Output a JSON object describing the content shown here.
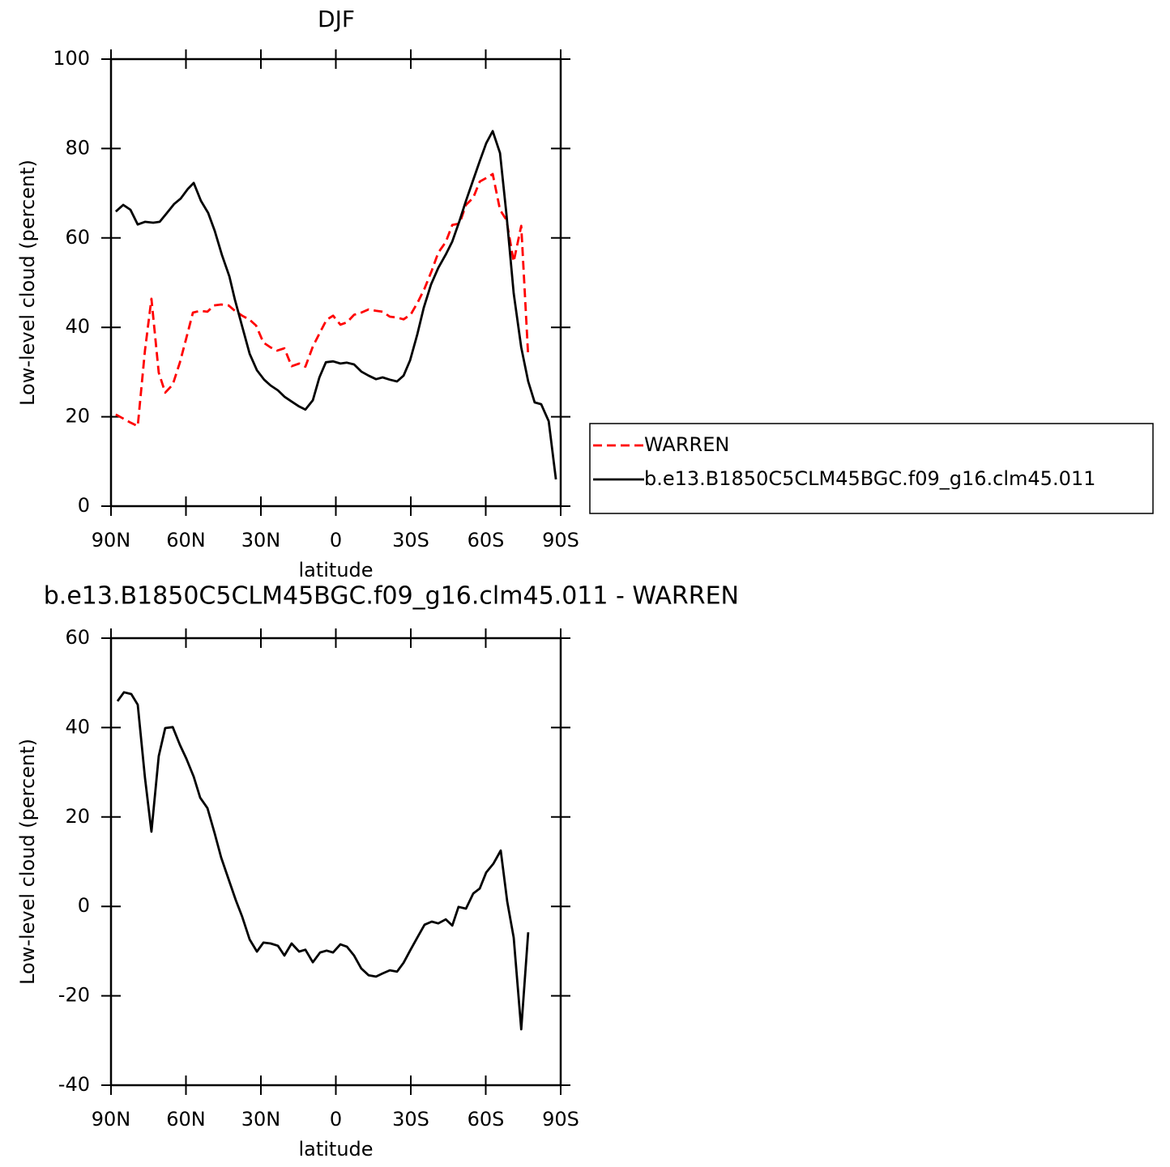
{
  "chart_data": [
    {
      "type": "line",
      "title": "DJF",
      "x_label": "latitude",
      "y_label": "Low-level cloud (percent)",
      "xlim": [
        90,
        -90
      ],
      "xticks": [
        {
          "value": 90,
          "label": "90N"
        },
        {
          "value": 60,
          "label": "60N"
        },
        {
          "value": 30,
          "label": "30N"
        },
        0,
        {
          "value": -30,
          "label": "30S"
        },
        {
          "value": -60,
          "label": "60S"
        },
        {
          "value": -90,
          "label": "90S"
        }
      ],
      "ylim": [
        0,
        100
      ],
      "yticks": [
        0,
        20,
        40,
        60,
        80,
        100
      ],
      "legend": "right",
      "series": [
        {
          "name": "WARREN",
          "color": "#ff0000",
          "dashed": true,
          "x": [
            88.1,
            85.1,
            82.2,
            79.3,
            76.4,
            73.8,
            70.9,
            68.3,
            65.3,
            62.4,
            59.8,
            57.2,
            54.3,
            51.4,
            48.8,
            45.9,
            42.9,
            40.4,
            37.5,
            34.5,
            31.9,
            29.0,
            26.1,
            23.5,
            20.6,
            17.7,
            14.7,
            12.2,
            9.2,
            6.6,
            3.7,
            1.1,
            -1.8,
            -4.4,
            -7.3,
            -10.2,
            -13.1,
            -16.1,
            -18.7,
            -21.6,
            -24.5,
            -27.1,
            -30.0,
            -32.9,
            -35.5,
            -38.4,
            -41.0,
            -44.0,
            -46.6,
            -49.5,
            -52.1,
            -55.0,
            -57.6,
            -60.2,
            -62.8,
            -65.7,
            -68.3,
            -71.2,
            -74.2,
            -77.0
          ],
          "values": [
            20.5,
            19.6,
            18.7,
            17.9,
            34.8,
            46.4,
            29.9,
            25.4,
            27.2,
            32.2,
            37.7,
            43.3,
            43.7,
            43.5,
            44.9,
            45.1,
            44.9,
            43.7,
            42.6,
            41.7,
            40.4,
            36.6,
            35.5,
            34.8,
            35.3,
            31.3,
            31.9,
            31.2,
            35.7,
            38.6,
            41.7,
            42.6,
            40.6,
            41.1,
            42.8,
            43.3,
            44.0,
            43.7,
            43.5,
            42.4,
            42.2,
            41.8,
            42.9,
            45.7,
            48.7,
            52.7,
            56.7,
            59.1,
            62.9,
            63.2,
            67.4,
            69.0,
            72.6,
            73.4,
            74.3,
            66.3,
            64.0,
            54.7,
            62.7,
            33.5
          ]
        },
        {
          "name": "b.e13.B1850C5CLM45BGC.f09_g16.clm45.011",
          "color": "#000000",
          "dashed": false,
          "x": [
            88.1,
            85.1,
            82.2,
            79.3,
            76.4,
            73.1,
            70.5,
            67.6,
            64.7,
            62.1,
            59.2,
            56.9,
            54.0,
            51.1,
            48.5,
            45.6,
            42.6,
            40.4,
            37.5,
            34.5,
            31.6,
            28.7,
            26.1,
            23.2,
            20.6,
            17.7,
            14.7,
            12.2,
            9.2,
            6.6,
            4.0,
            1.1,
            -1.8,
            -4.4,
            -7.3,
            -10.2,
            -13.1,
            -16.1,
            -18.7,
            -21.6,
            -24.5,
            -27.1,
            -29.7,
            -32.6,
            -35.2,
            -38.1,
            -41.0,
            -44.0,
            -46.6,
            -49.5,
            -52.1,
            -55.0,
            -57.6,
            -60.2,
            -62.8,
            -65.7,
            -68.3,
            -71.2,
            -74.2,
            -77.0,
            -79.6,
            -82.2,
            -85.2,
            -88.1
          ],
          "values": [
            65.9,
            67.4,
            66.3,
            63.0,
            63.6,
            63.4,
            63.6,
            65.6,
            67.6,
            68.8,
            71.0,
            72.3,
            68.3,
            65.6,
            61.6,
            56.2,
            51.4,
            46.2,
            40.2,
            34.1,
            30.4,
            28.3,
            27.0,
            25.9,
            24.5,
            23.4,
            22.3,
            21.6,
            23.7,
            28.8,
            32.2,
            32.4,
            31.9,
            32.1,
            31.7,
            30.1,
            29.2,
            28.4,
            28.8,
            28.3,
            27.9,
            29.2,
            32.6,
            38.4,
            44.4,
            49.6,
            53.3,
            56.3,
            59.2,
            63.8,
            68.3,
            73.0,
            77.2,
            81.2,
            83.9,
            79.0,
            65.2,
            47.6,
            35.5,
            27.9,
            23.2,
            22.8,
            19.0,
            6.0
          ]
        }
      ]
    },
    {
      "type": "line",
      "title": "b.e13.B1850C5CLM45BGC.f09_g16.clm45.011 - WARREN",
      "x_label": "latitude",
      "y_label": "Low-level cloud (percent)",
      "xlim": [
        90,
        -90
      ],
      "xticks": [
        {
          "value": 90,
          "label": "90N"
        },
        {
          "value": 60,
          "label": "60N"
        },
        {
          "value": 30,
          "label": "30N"
        },
        0,
        {
          "value": -30,
          "label": "30S"
        },
        {
          "value": -60,
          "label": "60S"
        },
        {
          "value": -90,
          "label": "90S"
        }
      ],
      "ylim": [
        -40,
        60
      ],
      "yticks": [
        -40,
        -20,
        0,
        20,
        40,
        60
      ],
      "series": [
        {
          "color": "#000000",
          "dashed": false,
          "x": [
            87.4,
            84.8,
            81.9,
            79.3,
            76.4,
            73.8,
            70.9,
            68.3,
            65.3,
            62.4,
            59.8,
            56.9,
            54.3,
            51.4,
            48.5,
            45.9,
            43.0,
            40.0,
            37.5,
            34.5,
            31.6,
            29.0,
            26.1,
            23.2,
            20.6,
            17.7,
            14.7,
            12.2,
            9.2,
            6.3,
            3.7,
            1.1,
            -1.8,
            -4.4,
            -7.3,
            -10.2,
            -13.1,
            -16.1,
            -18.7,
            -21.6,
            -24.5,
            -27.1,
            -30.0,
            -32.9,
            -35.5,
            -38.4,
            -41.0,
            -44.0,
            -46.6,
            -49.1,
            -52.1,
            -55.0,
            -57.6,
            -60.2,
            -63.1,
            -66.0,
            -68.6,
            -71.2,
            -74.2,
            -77.0
          ],
          "values": [
            45.9,
            47.9,
            47.5,
            45.1,
            28.8,
            16.7,
            33.6,
            39.9,
            40.1,
            36.1,
            33.0,
            29.0,
            24.3,
            22.0,
            16.3,
            10.9,
            6.2,
            1.3,
            -2.3,
            -7.4,
            -10.1,
            -8.1,
            -8.3,
            -8.8,
            -11.0,
            -8.3,
            -10.1,
            -9.7,
            -12.5,
            -10.3,
            -9.9,
            -10.3,
            -8.5,
            -9.0,
            -11.0,
            -13.9,
            -15.4,
            -15.7,
            -15.0,
            -14.3,
            -14.6,
            -12.6,
            -9.6,
            -6.7,
            -4.1,
            -3.4,
            -3.8,
            -2.9,
            -4.3,
            -0.1,
            -0.5,
            2.9,
            4.0,
            7.6,
            9.6,
            12.5,
            1.1,
            -7.0,
            -27.5,
            -5.8
          ]
        }
      ]
    }
  ]
}
